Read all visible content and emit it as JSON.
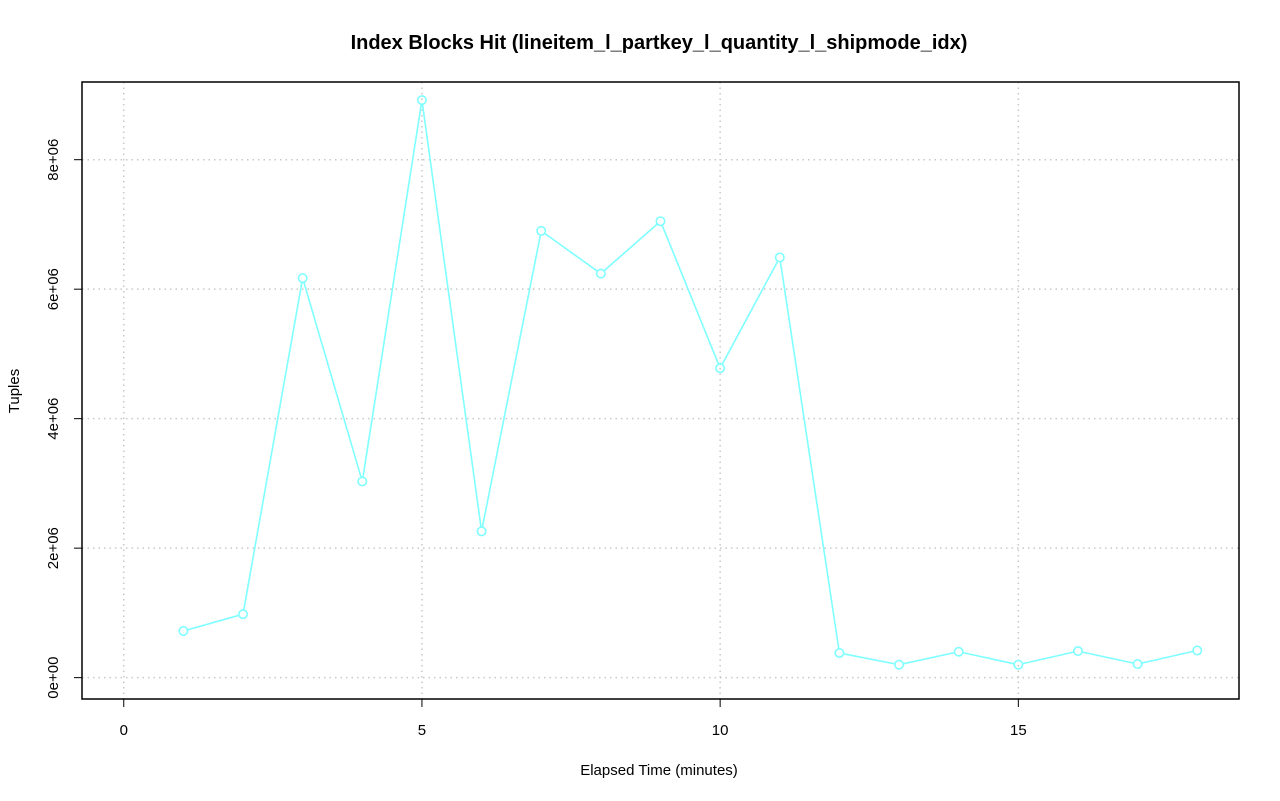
{
  "chart_data": {
    "type": "line",
    "title": "Index Blocks Hit (lineitem_l_partkey_l_quantity_l_shipmode_idx)",
    "xlabel": "Elapsed Time (minutes)",
    "ylabel": "Tuples",
    "xlim": [
      -0.7,
      18.7
    ],
    "ylim": [
      -330000,
      9200000
    ],
    "x_ticks": [
      0,
      5,
      10,
      15
    ],
    "x_tick_labels": [
      "0",
      "5",
      "10",
      "15"
    ],
    "y_ticks": [
      0,
      2000000,
      4000000,
      6000000,
      8000000
    ],
    "y_tick_labels": [
      "0e+00",
      "2e+06",
      "4e+06",
      "6e+06",
      "8e+06"
    ],
    "grid": true,
    "series": [
      {
        "color": "#7fffff",
        "marker": "open-circle",
        "x": [
          1,
          2,
          3,
          4,
          5,
          6,
          7,
          8,
          9,
          10,
          11,
          12,
          13,
          14,
          15,
          16,
          17,
          18
        ],
        "values": [
          720000,
          980000,
          6170000,
          3030000,
          8920000,
          2260000,
          6900000,
          6240000,
          7050000,
          4780000,
          6490000,
          380000,
          200000,
          400000,
          200000,
          410000,
          210000,
          420000
        ]
      }
    ]
  }
}
